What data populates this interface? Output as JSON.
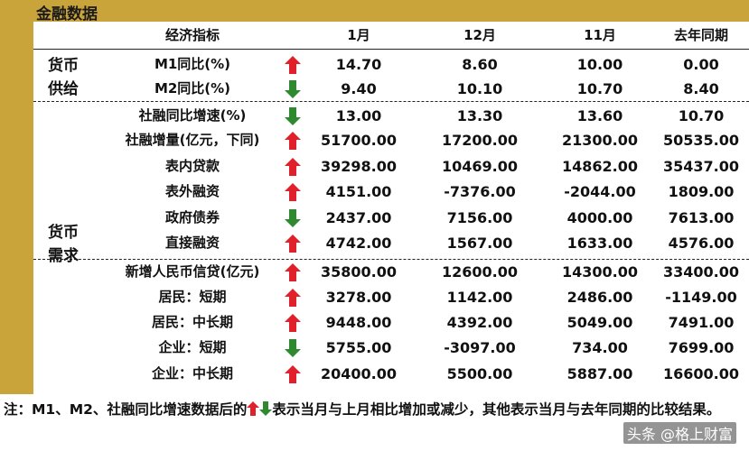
{
  "title": "金融数据",
  "header": {
    "indicator": "经济指标",
    "col1": "1月",
    "col2": "12月",
    "col3": "11月",
    "col4": "去年同期"
  },
  "groups": {
    "supply_line1": "货币",
    "supply_line2": "供给",
    "demand_line1": "货币",
    "demand_line2": "需求"
  },
  "rows": [
    {
      "label": "M1同比(%)",
      "arrow": "up",
      "values": [
        "14.70",
        "8.60",
        "10.00",
        "0.00"
      ]
    },
    {
      "label": "M2同比(%)",
      "arrow": "down",
      "values": [
        "9.40",
        "10.10",
        "10.70",
        "8.40"
      ]
    },
    {
      "label": "社融同比增速(%)",
      "arrow": "down",
      "values": [
        "13.00",
        "13.30",
        "13.60",
        "10.70"
      ]
    },
    {
      "label": "社融增量(亿元，下同)",
      "arrow": "up",
      "values": [
        "51700.00",
        "17200.00",
        "21300.00",
        "50535.00"
      ]
    },
    {
      "label": "表内贷款",
      "arrow": "up",
      "values": [
        "39298.00",
        "10469.00",
        "14862.00",
        "35437.00"
      ]
    },
    {
      "label": "表外融资",
      "arrow": "up",
      "values": [
        "4151.00",
        "-7376.00",
        "-2044.00",
        "1809.00"
      ]
    },
    {
      "label": "政府债券",
      "arrow": "down",
      "values": [
        "2437.00",
        "7156.00",
        "4000.00",
        "7613.00"
      ]
    },
    {
      "label": "直接融资",
      "arrow": "up",
      "values": [
        "4742.00",
        "1567.00",
        "1633.00",
        "4576.00"
      ]
    },
    {
      "label": "新增人民币信贷(亿元)",
      "arrow": "up",
      "values": [
        "35800.00",
        "12600.00",
        "14300.00",
        "33400.00"
      ]
    },
    {
      "label": "居民：短期",
      "arrow": "up",
      "values": [
        "3278.00",
        "1142.00",
        "2486.00",
        "-1149.00"
      ]
    },
    {
      "label": "居民：中长期",
      "arrow": "up",
      "values": [
        "9448.00",
        "4392.00",
        "5049.00",
        "7491.00"
      ]
    },
    {
      "label": "企业：短期",
      "arrow": "down",
      "values": [
        "5755.00",
        "-3097.00",
        "734.00",
        "7699.00"
      ]
    },
    {
      "label": "企业：中长期",
      "arrow": "up",
      "values": [
        "20400.00",
        "5500.00",
        "5887.00",
        "16600.00"
      ]
    }
  ],
  "note": {
    "part1": "注：M1、M2、社融同比增速数据后的",
    "part2": "表示当月与上月相比增加或减少，其他表示当月与去年同期的比较结果。"
  },
  "watermark": "头条 @格上财富",
  "colors": {
    "gold": "#c9a43a",
    "up": "#e0202a",
    "down": "#2f8a2f"
  }
}
